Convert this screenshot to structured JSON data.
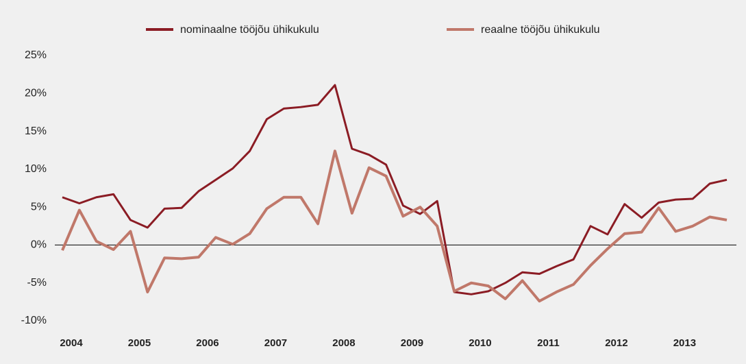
{
  "chart_data": {
    "type": "line",
    "categories": [
      "2004",
      null,
      null,
      null,
      "2005",
      null,
      null,
      null,
      "2006",
      null,
      null,
      null,
      "2007",
      null,
      null,
      null,
      "2008",
      null,
      null,
      null,
      "2009",
      null,
      null,
      null,
      "2010",
      null,
      null,
      null,
      "2011",
      null,
      null,
      null,
      "2012",
      null,
      null,
      null,
      "2013",
      null,
      null,
      null
    ],
    "series": [
      {
        "name": "nominaalne tööjõu ühikukulu",
        "color": "#8b1c24",
        "values": [
          6.3,
          5.5,
          6.3,
          6.7,
          3.3,
          2.3,
          4.8,
          4.9,
          7.1,
          8.6,
          10.1,
          12.4,
          16.6,
          18.0,
          18.2,
          18.5,
          21.1,
          12.7,
          11.9,
          10.6,
          5.2,
          4.1,
          5.8,
          -6.2,
          -6.5,
          -6.1,
          -5.0,
          -3.6,
          -3.8,
          -2.8,
          -1.9,
          2.5,
          1.4,
          5.4,
          3.6,
          5.6,
          6.0,
          6.1,
          8.1,
          8.6
        ]
      },
      {
        "name": "reaalne tööjõu ühikukulu",
        "color": "#c0786a",
        "values": [
          -0.7,
          4.6,
          0.5,
          -0.6,
          1.8,
          -6.2,
          -1.7,
          -1.8,
          -1.6,
          1.0,
          0.1,
          1.5,
          4.8,
          6.3,
          6.3,
          2.8,
          12.4,
          4.2,
          10.2,
          9.1,
          3.8,
          5.0,
          2.5,
          -6.1,
          -5.0,
          -5.4,
          -7.1,
          -4.7,
          -7.4,
          -6.2,
          -5.2,
          -2.7,
          -0.5,
          1.5,
          1.7,
          4.9,
          1.8,
          2.5,
          3.7,
          3.3
        ]
      }
    ],
    "ylim": [
      -10,
      25
    ],
    "yticks": [
      {
        "value": -10,
        "label": "-10%"
      },
      {
        "value": -5,
        "label": "-5%"
      },
      {
        "value": 0,
        "label": "0%"
      },
      {
        "value": 5,
        "label": "5%"
      },
      {
        "value": 10,
        "label": "10%"
      },
      {
        "value": 15,
        "label": "15%"
      },
      {
        "value": 20,
        "label": "20%"
      },
      {
        "value": 25,
        "label": "25%"
      }
    ],
    "grid": false,
    "legend": "top"
  }
}
